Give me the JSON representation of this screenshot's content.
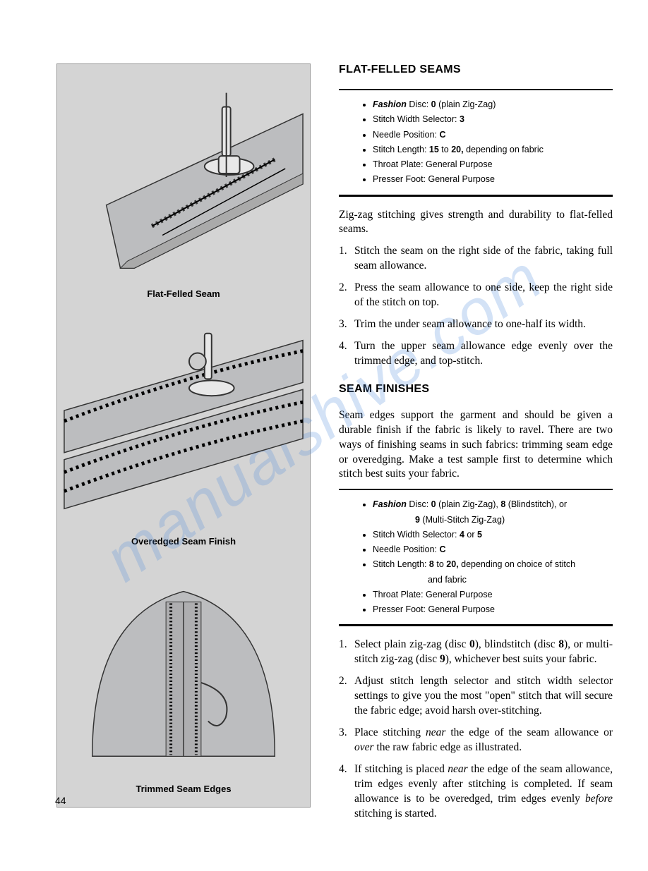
{
  "page_number": "44",
  "watermark_text": "manualshive.com",
  "illustrations": {
    "panel_bg": "#d4d4d4",
    "fabric_fill": "#bcbdbf",
    "fabric_stroke": "#333333",
    "captions": {
      "flat_felled": "Flat-Felled Seam",
      "overedged": "Overedged Seam Finish",
      "trimmed": "Trimmed Seam Edges"
    }
  },
  "section1": {
    "title": "FLAT-FELLED SEAMS",
    "settings": [
      {
        "html": "<em>Fashion</em> Disc: <span class='bold'>0</span> (plain Zig-Zag)"
      },
      {
        "html": "Stitch Width Selector: <span class='bold'>3</span>"
      },
      {
        "html": "Needle Position: <span class='bold'>C</span>"
      },
      {
        "html": "Stitch Length: <span class='bold'>15</span> to <span class='bold'>20,</span> depending on fabric"
      },
      {
        "html": "Throat Plate: General Purpose"
      },
      {
        "html": "Presser Foot: General Purpose"
      }
    ],
    "intro": "Zig-zag stitching gives strength and durability to flat-felled seams.",
    "steps": [
      "Stitch the seam on the right side of the fabric, taking full seam allowance.",
      "Press the seam allowance to one side, keep the right side of the stitch on top.",
      "Trim the under seam allowance to one-half its width.",
      "Turn the upper seam allowance edge evenly over the trimmed edge, and top-stitch."
    ]
  },
  "section2": {
    "title": "SEAM FINISHES",
    "intro": "Seam edges support the garment and should be given a durable finish if the fabric is likely to ravel. There are two ways of finishing seams in such fabrics: trimming seam edge or overedging. Make a test sample first to determine which stitch best suits your fabric.",
    "settings": [
      {
        "html": "<em>Fashion</em> Disc: <span class='bold'>0</span> (plain Zig-Zag), <span class='bold'>8</span> (Blindstitch), or<br><span style='padding-left:60px'><span class='bold'>9</span> (Multi-Stitch Zig-Zag)</span>"
      },
      {
        "html": "Stitch Width Selector: <span class='bold'>4</span> or <span class='bold'>5</span>"
      },
      {
        "html": "Needle Position: <span class='bold'>C</span>"
      },
      {
        "html": "Stitch Length: <span class='bold'>8</span> to <span class='bold'>20,</span> depending on choice of stitch<br><span style='padding-left:78px'>and fabric</span>"
      },
      {
        "html": "Throat Plate: General Purpose"
      },
      {
        "html": "Presser Foot: General Purpose"
      }
    ],
    "steps_html": [
      "Select plain zig-zag (disc <span class='bold'>0</span>), blindstitch (disc <span class='bold'>8</span>), or multi-stitch zig-zag (disc <span class='bold'>9</span>), whichever best suits your fabric.",
      "Adjust stitch length selector and stitch width selector settings to give you the most \"open\" stitch that will secure the fabric edge; avoid harsh over-stitching.",
      "Place stitching <em>near</em> the edge of the seam allowance or <em>over</em> the raw fabric edge as illustrated.",
      "If stitching is placed <em>near</em> the edge of the seam allowance, trim edges evenly after stitching is completed. If seam allowance is to be overedged, trim edges evenly <em>before</em> stitching is started."
    ]
  }
}
